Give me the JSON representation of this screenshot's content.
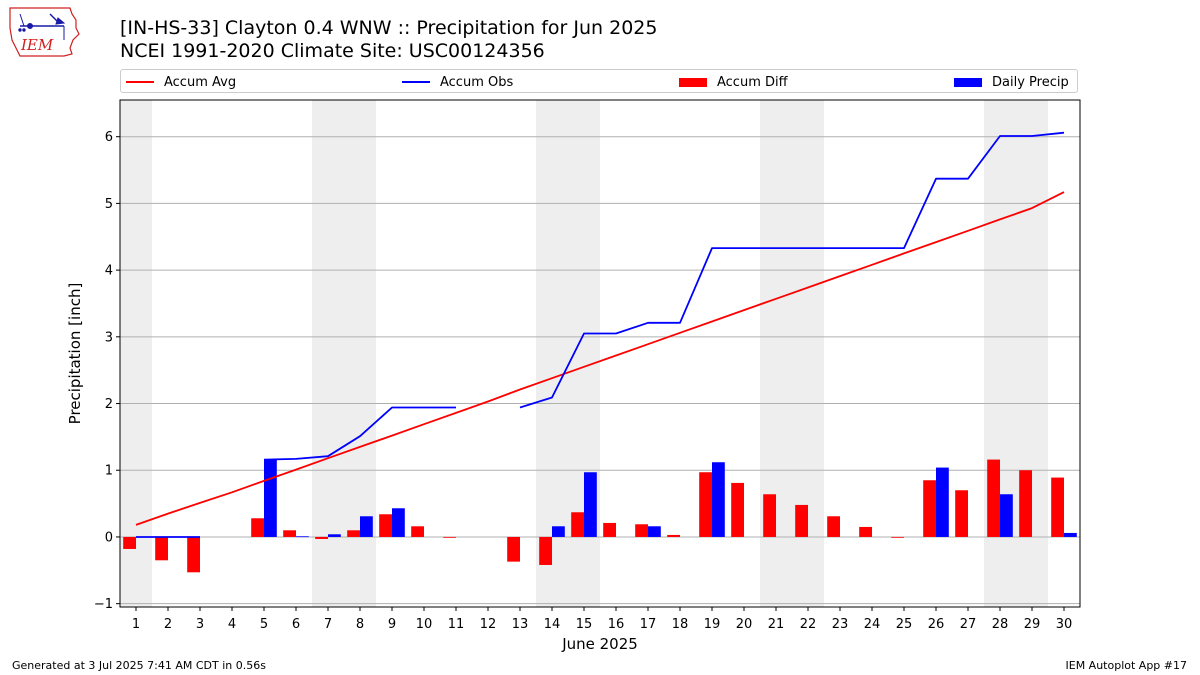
{
  "header": {
    "title_line1": "[IN-HS-33] Clayton 0.4 WNW :: Precipitation for Jun 2025",
    "title_line2": "NCEI 1991-2020 Climate Site: USC00124356"
  },
  "logo": {
    "text": "IEM",
    "icon": "iem-iowa-weather-logo"
  },
  "footer": {
    "generated": "Generated at 3 Jul 2025 7:41 AM CDT in 0.56s",
    "app": "IEM Autoplot App #17"
  },
  "colors": {
    "avg": "#ff0000",
    "obs": "#0000ff",
    "diff": "#ff0000",
    "daily": "#0000ff",
    "weekend_shade": "#eeeeee",
    "grid": "#b0b0b0"
  },
  "chart_data": {
    "type": "bar",
    "xlabel": "June 2025",
    "ylabel": "Precipitation [inch]",
    "xlim": [
      0.5,
      30.5
    ],
    "ylim": [
      -1.05,
      6.55
    ],
    "yticks": [
      -1,
      0,
      1,
      2,
      3,
      4,
      5,
      6
    ],
    "grid": "horizontal",
    "legend_position": "top",
    "shaded_days": [
      1,
      7,
      8,
      14,
      15,
      21,
      22,
      28,
      29
    ],
    "x": [
      1,
      2,
      3,
      4,
      5,
      6,
      7,
      8,
      9,
      10,
      11,
      12,
      13,
      14,
      15,
      16,
      17,
      18,
      19,
      20,
      21,
      22,
      23,
      24,
      25,
      26,
      27,
      28,
      29,
      30
    ],
    "series": [
      {
        "name": "Accum Avg",
        "kind": "line",
        "values": [
          0.18,
          0.35,
          0.51,
          0.67,
          0.84,
          1.01,
          1.18,
          1.35,
          1.52,
          1.69,
          1.86,
          2.03,
          2.21,
          2.38,
          2.55,
          2.72,
          2.89,
          3.06,
          3.23,
          3.4,
          3.57,
          3.74,
          3.91,
          4.08,
          4.25,
          4.42,
          4.59,
          4.76,
          4.93,
          5.17
        ]
      },
      {
        "name": "Accum Obs",
        "kind": "line",
        "values": [
          0,
          0,
          0,
          null,
          1.16,
          1.17,
          1.21,
          1.51,
          1.94,
          1.94,
          1.94,
          null,
          1.94,
          2.09,
          3.05,
          3.05,
          3.21,
          3.21,
          4.33,
          4.33,
          4.33,
          4.33,
          4.33,
          4.33,
          4.33,
          5.37,
          5.37,
          6.01,
          6.01,
          6.06
        ]
      },
      {
        "name": "Accum Diff",
        "kind": "bar",
        "values": [
          -0.18,
          -0.35,
          -0.53,
          null,
          0.28,
          0.1,
          -0.03,
          0.1,
          0.34,
          0.16,
          -0.01,
          null,
          -0.37,
          -0.42,
          0.37,
          0.21,
          0.19,
          0.03,
          0.97,
          0.81,
          0.64,
          0.48,
          0.31,
          0.15,
          -0.01,
          0.85,
          0.7,
          1.16,
          1.0,
          0.89
        ]
      },
      {
        "name": "Daily Precip",
        "kind": "bar",
        "values": [
          0,
          0,
          0,
          null,
          1.16,
          0.01,
          0.04,
          0.31,
          0.43,
          0,
          0,
          null,
          0,
          0.16,
          0.97,
          0,
          0.16,
          0,
          1.12,
          0,
          0,
          0,
          0,
          0,
          0,
          1.04,
          0,
          0.64,
          0,
          0.06
        ]
      }
    ]
  }
}
